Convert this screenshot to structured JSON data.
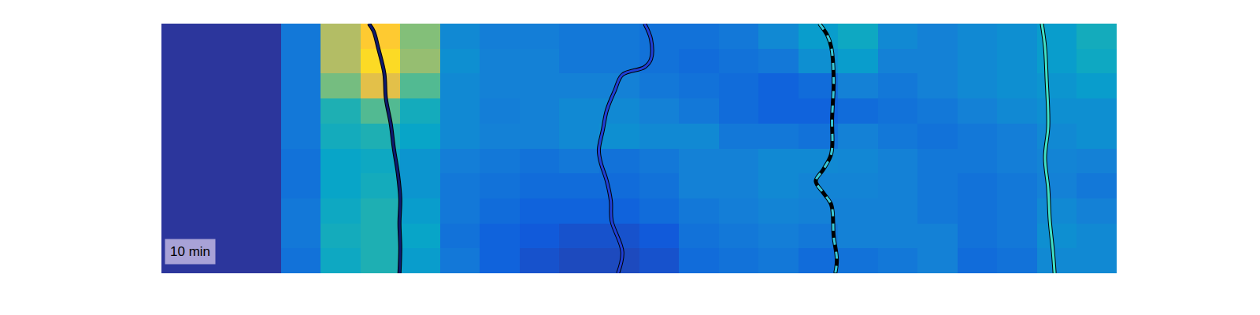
{
  "chart_data": {
    "type": "heatmap",
    "annotation": "10 min",
    "tick_labels": false,
    "xlim": [
      0,
      24
    ],
    "ylim": [
      10,
      0
    ],
    "zlim": [
      0,
      1
    ],
    "cells": [
      [
        0.03,
        0.03,
        0.03,
        0.2,
        0.4,
        0.45,
        0.35,
        0.22,
        0.15,
        0.1,
        0.08,
        0.08,
        0.1,
        0.18,
        0.2,
        0.22,
        0.18,
        0.2,
        0.22,
        0.25,
        0.18,
        0.2,
        0.28,
        0.28
      ],
      [
        0.03,
        0.03,
        0.03,
        0.22,
        0.42,
        0.45,
        0.38,
        0.2,
        0.15,
        0.12,
        0.1,
        0.1,
        0.12,
        0.2,
        0.22,
        0.24,
        0.22,
        0.25,
        0.25,
        0.25,
        0.2,
        0.22,
        0.3,
        0.28
      ],
      [
        0.03,
        0.03,
        0.03,
        0.22,
        0.4,
        0.45,
        0.35,
        0.22,
        0.18,
        0.15,
        0.15,
        0.15,
        0.18,
        0.22,
        0.24,
        0.26,
        0.25,
        0.25,
        0.25,
        0.22,
        0.2,
        0.22,
        0.28,
        0.25
      ],
      [
        0.03,
        0.03,
        0.03,
        0.2,
        0.38,
        0.42,
        0.32,
        0.22,
        0.2,
        0.18,
        0.18,
        0.18,
        0.2,
        0.25,
        0.25,
        0.28,
        0.26,
        0.26,
        0.25,
        0.22,
        0.2,
        0.22,
        0.25,
        0.22
      ],
      [
        0.03,
        0.03,
        0.03,
        0.2,
        0.38,
        0.4,
        0.32,
        0.24,
        0.22,
        0.2,
        0.22,
        0.2,
        0.22,
        0.25,
        0.25,
        0.28,
        0.28,
        0.27,
        0.25,
        0.22,
        0.22,
        0.24,
        0.26,
        0.25
      ],
      [
        0.03,
        0.03,
        0.03,
        0.22,
        0.42,
        0.45,
        0.38,
        0.28,
        0.25,
        0.25,
        0.28,
        0.3,
        0.28,
        0.28,
        0.22,
        0.22,
        0.2,
        0.25,
        0.22,
        0.2,
        0.22,
        0.24,
        0.28,
        0.3
      ],
      [
        0.03,
        0.03,
        0.03,
        0.22,
        0.45,
        0.55,
        0.42,
        0.28,
        0.24,
        0.25,
        0.28,
        0.28,
        0.25,
        0.22,
        0.18,
        0.15,
        0.15,
        0.18,
        0.2,
        0.22,
        0.25,
        0.28,
        0.3,
        0.3
      ],
      [
        0.03,
        0.03,
        0.03,
        0.22,
        0.6,
        0.8,
        0.55,
        0.28,
        0.25,
        0.25,
        0.25,
        0.25,
        0.22,
        0.2,
        0.18,
        0.15,
        0.18,
        0.25,
        0.22,
        0.25,
        0.28,
        0.3,
        0.32,
        0.35
      ],
      [
        0.03,
        0.03,
        0.03,
        0.22,
        0.7,
        0.92,
        0.65,
        0.3,
        0.25,
        0.25,
        0.22,
        0.22,
        0.2,
        0.18,
        0.2,
        0.22,
        0.3,
        0.35,
        0.25,
        0.25,
        0.28,
        0.3,
        0.35,
        0.4
      ],
      [
        0.03,
        0.03,
        0.03,
        0.22,
        0.7,
        0.88,
        0.62,
        0.28,
        0.24,
        0.24,
        0.22,
        0.22,
        0.2,
        0.2,
        0.22,
        0.28,
        0.35,
        0.4,
        0.28,
        0.25,
        0.28,
        0.3,
        0.35,
        0.42
      ]
    ],
    "series": [
      {
        "color": "#0d1a6e",
        "line_style": "solid",
        "x": [
          5.21,
          5.33,
          5.45,
          5.6,
          5.64,
          5.76,
          5.84,
          5.94,
          6.0,
          5.98,
          6.0,
          5.98
        ],
        "y": [
          0,
          0.3,
          1,
          2,
          3,
          4,
          5,
          6,
          7,
          8,
          9,
          10
        ]
      },
      {
        "color": "#1f3fd6",
        "line_style": "solid",
        "x": [
          12.14,
          12.3,
          12.3,
          12.14,
          11.58,
          11.39,
          11.19,
          11.09,
          10.99,
          11.03,
          11.19,
          11.29,
          11.31,
          11.58,
          11.47
        ],
        "y": [
          0,
          0.63,
          1.42,
          1.74,
          2.05,
          2.68,
          3.47,
          4.26,
          5.05,
          5.52,
          6.31,
          7.1,
          7.89,
          9.15,
          10
        ]
      },
      {
        "color": "#37c8d8",
        "line_style": "dashed",
        "x": [
          16.53,
          16.73,
          16.83,
          16.89,
          16.85,
          16.83,
          16.63,
          16.44,
          16.63,
          16.83,
          16.89,
          16.97,
          16.93
        ],
        "y": [
          0,
          0.47,
          0.95,
          2.21,
          3.79,
          5.21,
          5.84,
          6.31,
          6.78,
          7.26,
          8.52,
          9.46,
          10
        ]
      },
      {
        "color": "#40e0c8",
        "line_style": "solid",
        "x": [
          22.12,
          22.2,
          22.24,
          22.28,
          22.2,
          22.28,
          22.32,
          22.4,
          22.44
        ],
        "y": [
          0,
          0.95,
          2.21,
          4.1,
          5.36,
          6.62,
          7.89,
          9.15,
          10
        ]
      }
    ]
  }
}
